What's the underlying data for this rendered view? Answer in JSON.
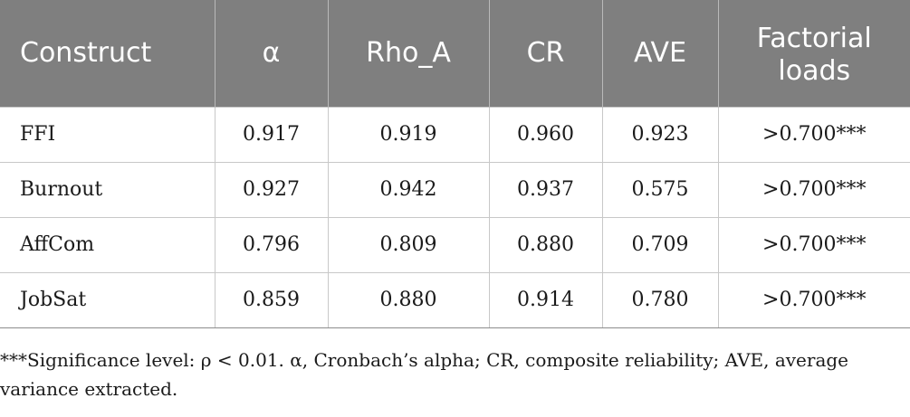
{
  "table": {
    "headers": [
      "Construct",
      "α",
      "Rho_A",
      "CR",
      "AVE",
      "Factorial loads"
    ],
    "rows": [
      [
        "FFI",
        "0.917",
        "0.919",
        "0.960",
        "0.923",
        ">0.700***"
      ],
      [
        "Burnout",
        "0.927",
        "0.942",
        "0.937",
        "0.575",
        ">0.700***"
      ],
      [
        "AffCom",
        "0.796",
        "0.809",
        "0.880",
        "0.709",
        ">0.700***"
      ],
      [
        "JobSat",
        "0.859",
        "0.880",
        "0.914",
        "0.780",
        ">0.700***"
      ]
    ]
  },
  "footnote": "***Significance level: ρ < 0.01. α, Cronbach’s alpha; CR, composite reliability; AVE, average variance extracted.",
  "colors": {
    "header_background": "#7f7f7f",
    "header_text": "#ffffff",
    "grid_lines": "#c8c8c8"
  }
}
